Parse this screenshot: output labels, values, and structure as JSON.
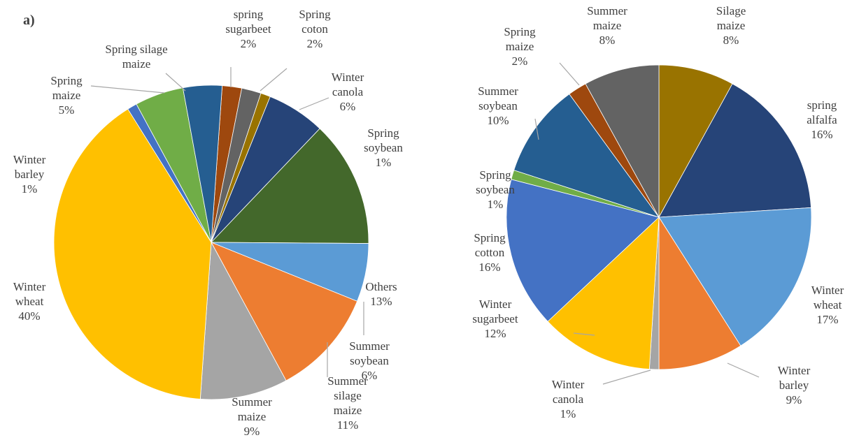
{
  "chart_data": [
    {
      "type": "pie",
      "panel_label": "a)",
      "categories": [
        "spring sugarbeet",
        "Spring coton",
        "Spring soybean",
        "Winter canola",
        "Others",
        "Summer soybean",
        "Summer silage maize",
        "Summer maize",
        "Winter wheat",
        "Winter barley",
        "Spring maize",
        "Spring silage maize"
      ],
      "values": [
        2,
        2,
        1,
        6,
        13,
        6,
        11,
        9,
        40,
        1,
        5,
        4
      ],
      "value_labels": [
        "2%",
        "2%",
        "1%",
        "6%",
        "13%",
        "6%",
        "11%",
        "9%",
        "40%",
        "1%",
        "5%",
        null
      ],
      "colors": [
        "#9e480e",
        "#636363",
        "#997300",
        "#264478",
        "#43682b",
        "#5b9bd5",
        "#ed7d31",
        "#a5a5a5",
        "#ffc000",
        "#4472c4",
        "#70ad47",
        "#255e91"
      ]
    },
    {
      "type": "pie",
      "categories": [
        "Silage maize",
        "spring alfalfa",
        "Winter wheat",
        "Winter barley",
        "Winter canola",
        "Winter sugarbeet",
        "Spring cotton",
        "Spring soybean",
        "Summer soybean",
        "Spring maize",
        "Summer maize"
      ],
      "values": [
        8,
        16,
        17,
        9,
        1,
        12,
        16,
        1,
        10,
        2,
        8
      ],
      "value_labels": [
        "8%",
        "16%",
        "17%",
        "9%",
        "1%",
        "12%",
        "16%",
        "1%",
        "10%",
        "2%",
        "8%"
      ],
      "colors": [
        "#997300",
        "#264478",
        "#5b9bd5",
        "#ed7d31",
        "#a5a5a5",
        "#ffc000",
        "#4472c4",
        "#70ad47",
        "#255e91",
        "#9e480e",
        "#636363"
      ]
    }
  ]
}
